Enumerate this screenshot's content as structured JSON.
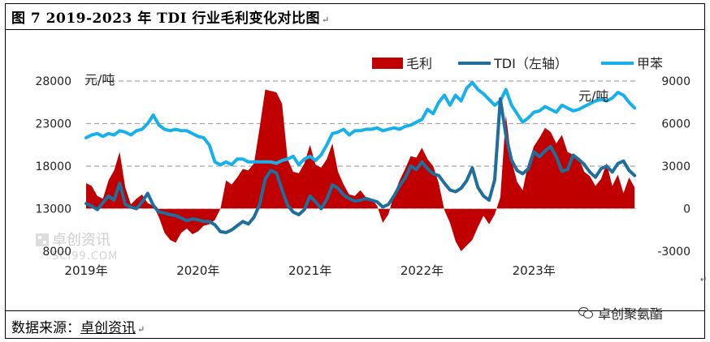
{
  "figure": {
    "title": "图 7 2019-2023 年 TDI 行业毛利变化对比图",
    "title_mark": "↵",
    "source_label": "数据来源：",
    "source_value": "卓创资讯",
    "source_mark": "↵",
    "wechat_text": "卓创聚氨酯"
  },
  "watermark": {
    "name": "卓创资讯",
    "site": "SCI99.COM"
  },
  "chart_data": {
    "type": "line",
    "title": "图 7 2019-2023 年 TDI 行业毛利变化对比图",
    "left_axis": {
      "unit": "元/吨",
      "ticks": [
        8000,
        13000,
        18000,
        23000,
        28000
      ],
      "tick_labels": [
        "8000",
        "13000",
        "18000",
        "23000",
        "28000"
      ],
      "range": [
        8000,
        28000
      ]
    },
    "right_axis": {
      "unit": "元/吨",
      "ticks": [
        -3000,
        0,
        3000,
        6000,
        9000
      ],
      "tick_labels": [
        "-3000",
        "0",
        "3000",
        "6000",
        "9000"
      ],
      "range": [
        -3000,
        9000
      ]
    },
    "x_axis": {
      "ticks": [
        2019,
        2020,
        2021,
        2022,
        2023
      ],
      "tick_labels": [
        "2019年",
        "2020年",
        "2021年",
        "2022年",
        "2023年"
      ],
      "range": [
        2019.0,
        2023.92
      ]
    },
    "gridlines": [
      13000,
      18000,
      23000,
      28000
    ],
    "legend": {
      "position": "top-right",
      "entries": [
        "毛利",
        "TDI（左轴）",
        "甲苯"
      ]
    },
    "colors": {
      "margin": "#c00000",
      "tdi": "#1f6e9c",
      "toluene": "#17b0ea"
    },
    "series": [
      {
        "name": "毛利",
        "axis": "right",
        "kind": "area",
        "x": [
          2019.0,
          2019.05,
          2019.1,
          2019.15,
          2019.2,
          2019.25,
          2019.3,
          2019.35,
          2019.4,
          2019.45,
          2019.5,
          2019.55,
          2019.6,
          2019.65,
          2019.7,
          2019.75,
          2019.8,
          2019.85,
          2019.9,
          2019.95,
          2020.0,
          2020.05,
          2020.1,
          2020.15,
          2020.2,
          2020.25,
          2020.3,
          2020.35,
          2020.4,
          2020.45,
          2020.5,
          2020.55,
          2020.6,
          2020.65,
          2020.7,
          2020.75,
          2020.8,
          2020.85,
          2020.9,
          2020.95,
          2021.0,
          2021.05,
          2021.1,
          2021.15,
          2021.2,
          2021.25,
          2021.3,
          2021.35,
          2021.4,
          2021.45,
          2021.5,
          2021.55,
          2021.6,
          2021.65,
          2021.7,
          2021.75,
          2021.8,
          2021.85,
          2021.9,
          2021.95,
          2022.0,
          2022.05,
          2022.1,
          2022.15,
          2022.2,
          2022.25,
          2022.3,
          2022.35,
          2022.4,
          2022.45,
          2022.5,
          2022.55,
          2022.6,
          2022.65,
          2022.7,
          2022.75,
          2022.8,
          2022.85,
          2022.9,
          2022.95,
          2023.0,
          2023.05,
          2023.1,
          2023.15,
          2023.2,
          2023.25,
          2023.3,
          2023.35,
          2023.4,
          2023.45,
          2023.5,
          2023.55,
          2023.6,
          2023.65,
          2023.7,
          2023.75,
          2023.8,
          2023.85,
          2023.9
        ],
        "values": [
          1800,
          1600,
          900,
          700,
          2000,
          2700,
          4000,
          1500,
          300,
          700,
          1000,
          400,
          200,
          -600,
          -1700,
          -2200,
          -2400,
          -1700,
          -1400,
          -1800,
          -1600,
          -1200,
          -1100,
          -800,
          0,
          2000,
          1700,
          2200,
          2800,
          2700,
          3200,
          5700,
          8400,
          8300,
          8200,
          7400,
          3500,
          2600,
          2500,
          3200,
          4500,
          3100,
          2900,
          3500,
          4600,
          2600,
          1700,
          1000,
          900,
          1300,
          800,
          700,
          200,
          -1000,
          -400,
          1000,
          2000,
          2800,
          3700,
          3600,
          4300,
          3500,
          3000,
          1800,
          -100,
          -1000,
          -2300,
          -3000,
          -2600,
          -2200,
          -1300,
          -500,
          -1100,
          -400,
          800,
          6600,
          3400,
          1900,
          1300,
          3200,
          4400,
          5000,
          5700,
          5400,
          4600,
          5200,
          4000,
          3800,
          3600,
          2600,
          2300,
          1600,
          2100,
          3200,
          1600,
          2400,
          1100,
          2200,
          1500
        ]
      },
      {
        "name": "TDI（左轴）",
        "axis": "left",
        "kind": "line",
        "x": [
          2019.0,
          2019.05,
          2019.1,
          2019.15,
          2019.2,
          2019.25,
          2019.3,
          2019.35,
          2019.4,
          2019.45,
          2019.5,
          2019.55,
          2019.6,
          2019.65,
          2019.7,
          2019.75,
          2019.8,
          2019.85,
          2019.9,
          2019.95,
          2020.0,
          2020.05,
          2020.1,
          2020.15,
          2020.2,
          2020.25,
          2020.3,
          2020.35,
          2020.4,
          2020.45,
          2020.5,
          2020.55,
          2020.6,
          2020.65,
          2020.7,
          2020.75,
          2020.8,
          2020.85,
          2020.9,
          2020.95,
          2021.0,
          2021.05,
          2021.1,
          2021.15,
          2021.2,
          2021.25,
          2021.3,
          2021.35,
          2021.4,
          2021.45,
          2021.5,
          2021.55,
          2021.6,
          2021.65,
          2021.7,
          2021.75,
          2021.8,
          2021.85,
          2021.9,
          2021.95,
          2022.0,
          2022.05,
          2022.1,
          2022.15,
          2022.2,
          2022.25,
          2022.3,
          2022.35,
          2022.4,
          2022.45,
          2022.5,
          2022.55,
          2022.6,
          2022.65,
          2022.7,
          2022.75,
          2022.8,
          2022.85,
          2022.9,
          2022.95,
          2023.0,
          2023.05,
          2023.1,
          2023.15,
          2023.2,
          2023.25,
          2023.3,
          2023.35,
          2023.4,
          2023.45,
          2023.5,
          2023.55,
          2023.6,
          2023.65,
          2023.7,
          2023.75,
          2023.8,
          2023.85,
          2023.9
        ],
        "values": [
          13600,
          13300,
          12900,
          13700,
          14500,
          14000,
          16000,
          13500,
          13200,
          13000,
          13800,
          14800,
          13400,
          12600,
          12500,
          12300,
          12200,
          11900,
          11600,
          11800,
          11700,
          11500,
          11500,
          11100,
          10300,
          10200,
          10500,
          11000,
          11500,
          11200,
          12000,
          13500,
          16500,
          17500,
          17200,
          15200,
          13400,
          12600,
          12300,
          12900,
          14500,
          13800,
          13000,
          14100,
          15800,
          15400,
          14600,
          14200,
          13900,
          14000,
          14200,
          14000,
          13800,
          13200,
          13500,
          14500,
          15700,
          16600,
          18000,
          17600,
          18500,
          17700,
          17100,
          16900,
          16000,
          15200,
          15000,
          15400,
          16300,
          17800,
          15500,
          14500,
          14000,
          16400,
          25900,
          21600,
          18700,
          17500,
          17100,
          17700,
          19700,
          19100,
          19800,
          20300,
          19100,
          17400,
          17600,
          19300,
          18800,
          18200,
          17300,
          16700,
          17700,
          18000,
          17300,
          18300,
          18600,
          17500,
          16900
        ]
      },
      {
        "name": "甲苯",
        "axis": "right",
        "kind": "line",
        "x": [
          2019.0,
          2019.05,
          2019.1,
          2019.15,
          2019.2,
          2019.25,
          2019.3,
          2019.35,
          2019.4,
          2019.45,
          2019.5,
          2019.55,
          2019.6,
          2019.65,
          2019.7,
          2019.75,
          2019.8,
          2019.85,
          2019.9,
          2019.95,
          2020.0,
          2020.05,
          2020.1,
          2020.15,
          2020.2,
          2020.25,
          2020.3,
          2020.35,
          2020.4,
          2020.45,
          2020.5,
          2020.55,
          2020.6,
          2020.65,
          2020.7,
          2020.75,
          2020.8,
          2020.85,
          2020.9,
          2020.95,
          2021.0,
          2021.05,
          2021.1,
          2021.15,
          2021.2,
          2021.25,
          2021.3,
          2021.35,
          2021.4,
          2021.45,
          2021.5,
          2021.55,
          2021.6,
          2021.65,
          2021.7,
          2021.75,
          2021.8,
          2021.85,
          2021.9,
          2021.95,
          2022.0,
          2022.05,
          2022.1,
          2022.15,
          2022.2,
          2022.25,
          2022.3,
          2022.35,
          2022.4,
          2022.45,
          2022.5,
          2022.55,
          2022.6,
          2022.65,
          2022.7,
          2022.75,
          2022.8,
          2022.85,
          2022.9,
          2022.95,
          2023.0,
          2023.05,
          2023.1,
          2023.15,
          2023.2,
          2023.25,
          2023.3,
          2023.35,
          2023.4,
          2023.45,
          2023.5,
          2023.55,
          2023.6,
          2023.65,
          2023.7,
          2023.75,
          2023.8,
          2023.85,
          2023.9
        ],
        "values": [
          5000,
          5200,
          5300,
          5100,
          5300,
          5200,
          5500,
          5400,
          5200,
          5500,
          5600,
          6000,
          6600,
          5900,
          5600,
          5500,
          5600,
          5500,
          5500,
          5300,
          5100,
          5000,
          4500,
          3300,
          3100,
          3300,
          3100,
          3500,
          3500,
          3300,
          3300,
          3300,
          3300,
          3300,
          3200,
          3400,
          3500,
          3700,
          3100,
          3500,
          3700,
          3400,
          3800,
          4500,
          5300,
          5400,
          5600,
          5200,
          5500,
          5500,
          5600,
          5600,
          5700,
          5500,
          5600,
          5700,
          5600,
          5800,
          5900,
          6100,
          6300,
          7000,
          6700,
          7500,
          8000,
          7300,
          8000,
          7600,
          8500,
          8900,
          8400,
          8100,
          7700,
          7300,
          7600,
          8400,
          7300,
          6700,
          6100,
          6400,
          6800,
          6900,
          7200,
          7000,
          6800,
          7300,
          7100,
          6900,
          7000,
          7200,
          7400,
          7600,
          7700,
          7600,
          7800,
          8200,
          8000,
          7500,
          7100
        ]
      }
    ]
  }
}
